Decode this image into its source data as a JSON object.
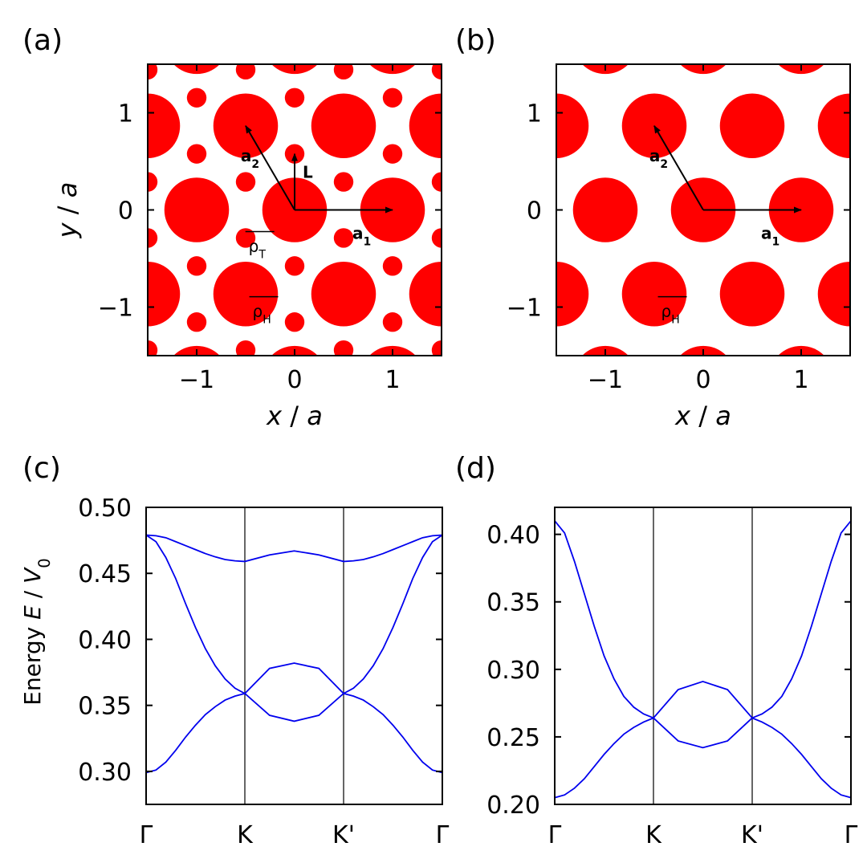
{
  "panel_labels": [
    "(a)",
    "(b)",
    "(c)",
    "(d)"
  ],
  "chart_data": [
    {
      "id": "a",
      "type": "scatter",
      "title": "",
      "xlabel": "x / a",
      "ylabel": "y / a",
      "xlim": [
        -1.5,
        1.5
      ],
      "ylim": [
        -1.5,
        1.5
      ],
      "xticks": [
        -1,
        0,
        1
      ],
      "yticks": [
        -1,
        0,
        1
      ],
      "marker_color": "#ff0000",
      "large_radius": 0.33,
      "small_radius": 0.1,
      "vectors": [
        {
          "label": "a",
          "sub": "1",
          "x": 1,
          "y": 0
        },
        {
          "label": "a",
          "sub": "2",
          "x": -0.5,
          "y": 0.866
        },
        {
          "label": "L",
          "sub": "",
          "x": 0,
          "y": 0.577
        }
      ],
      "annotations": [
        {
          "symbol": "ρ",
          "sub": "T",
          "x": -0.47,
          "y": -0.43
        },
        {
          "symbol": "ρ",
          "sub": "H",
          "x": -0.43,
          "y": -1.1
        }
      ]
    },
    {
      "id": "b",
      "type": "scatter",
      "title": "",
      "xlabel": "x / a",
      "ylabel": "",
      "xlim": [
        -1.5,
        1.5
      ],
      "ylim": [
        -1.5,
        1.5
      ],
      "xticks": [
        -1,
        0,
        1
      ],
      "yticks": [
        -1,
        0,
        1
      ],
      "marker_color": "#ff0000",
      "large_radius": 0.33,
      "small_radius": 0,
      "vectors": [
        {
          "label": "a",
          "sub": "1",
          "x": 1,
          "y": 0
        },
        {
          "label": "a",
          "sub": "2",
          "x": -0.5,
          "y": 0.866
        }
      ],
      "annotations": [
        {
          "symbol": "ρ",
          "sub": "H",
          "x": -0.43,
          "y": -1.1
        }
      ]
    },
    {
      "id": "c",
      "type": "line",
      "title": "",
      "xlabel": "",
      "ylabel": "Energy E / V0",
      "ylabel_parts": [
        "Energy ",
        "E",
        " / ",
        "V",
        "0"
      ],
      "categories": [
        "Γ",
        "K",
        "K'",
        "Γ"
      ],
      "ylim": [
        0.275,
        0.5
      ],
      "yticks": [
        "0.30",
        "0.35",
        "0.40",
        "0.45",
        "0.50"
      ],
      "line_color": "#0000ee",
      "series": [
        {
          "x": [
            0,
            0.1,
            0.2,
            0.3,
            0.4,
            0.5,
            0.6,
            0.7,
            0.8,
            0.9,
            1,
            1.25,
            1.5,
            1.75,
            2,
            2.1,
            2.2,
            2.3,
            2.4,
            2.5,
            2.6,
            2.7,
            2.8,
            2.9,
            3
          ],
          "values": [
            0.299,
            0.301,
            0.307,
            0.316,
            0.326,
            0.335,
            0.343,
            0.349,
            0.354,
            0.357,
            0.359,
            0.3425,
            0.338,
            0.3425,
            0.359,
            0.357,
            0.354,
            0.349,
            0.343,
            0.335,
            0.326,
            0.316,
            0.307,
            0.301,
            0.299
          ]
        },
        {
          "x": [
            0,
            0.1,
            0.2,
            0.3,
            0.4,
            0.5,
            0.6,
            0.7,
            0.8,
            0.9,
            1,
            1.25,
            1.5,
            1.75,
            2,
            2.1,
            2.2,
            2.3,
            2.4,
            2.5,
            2.6,
            2.7,
            2.8,
            2.9,
            3
          ],
          "values": [
            0.479,
            0.474,
            0.462,
            0.446,
            0.427,
            0.409,
            0.393,
            0.38,
            0.37,
            0.363,
            0.359,
            0.378,
            0.382,
            0.378,
            0.359,
            0.363,
            0.37,
            0.38,
            0.393,
            0.409,
            0.427,
            0.446,
            0.462,
            0.474,
            0.479
          ]
        },
        {
          "x": [
            0,
            0.1,
            0.2,
            0.3,
            0.4,
            0.5,
            0.6,
            0.7,
            0.8,
            0.9,
            1,
            1.25,
            1.5,
            1.75,
            2,
            2.1,
            2.2,
            2.3,
            2.4,
            2.5,
            2.6,
            2.7,
            2.8,
            2.9,
            3
          ],
          "values": [
            0.479,
            0.4785,
            0.477,
            0.474,
            0.471,
            0.468,
            0.465,
            0.4625,
            0.4605,
            0.4595,
            0.459,
            0.464,
            0.467,
            0.464,
            0.459,
            0.4595,
            0.4605,
            0.4625,
            0.465,
            0.468,
            0.471,
            0.474,
            0.477,
            0.4785,
            0.479
          ]
        }
      ]
    },
    {
      "id": "d",
      "type": "line",
      "title": "",
      "xlabel": "",
      "ylabel": "",
      "categories": [
        "Γ",
        "K",
        "K'",
        "Γ"
      ],
      "ylim": [
        0.2,
        0.42
      ],
      "yticks": [
        "0.20",
        "0.25",
        "0.30",
        "0.35",
        "0.40"
      ],
      "line_color": "#0000ee",
      "series": [
        {
          "x": [
            0,
            0.1,
            0.2,
            0.3,
            0.4,
            0.5,
            0.6,
            0.7,
            0.8,
            0.9,
            1,
            1.25,
            1.5,
            1.75,
            2,
            2.1,
            2.2,
            2.3,
            2.4,
            2.5,
            2.6,
            2.7,
            2.8,
            2.9,
            3
          ],
          "values": [
            0.205,
            0.207,
            0.212,
            0.219,
            0.228,
            0.237,
            0.245,
            0.252,
            0.257,
            0.261,
            0.264,
            0.247,
            0.242,
            0.247,
            0.264,
            0.261,
            0.257,
            0.252,
            0.245,
            0.237,
            0.228,
            0.219,
            0.212,
            0.207,
            0.205
          ]
        },
        {
          "x": [
            0,
            0.1,
            0.2,
            0.3,
            0.4,
            0.5,
            0.6,
            0.7,
            0.8,
            0.9,
            1,
            1.25,
            1.5,
            1.75,
            2,
            2.1,
            2.2,
            2.3,
            2.4,
            2.5,
            2.6,
            2.7,
            2.8,
            2.9,
            3
          ],
          "values": [
            0.41,
            0.401,
            0.38,
            0.356,
            0.332,
            0.31,
            0.293,
            0.28,
            0.272,
            0.267,
            0.264,
            0.285,
            0.291,
            0.285,
            0.264,
            0.267,
            0.272,
            0.28,
            0.293,
            0.31,
            0.332,
            0.356,
            0.38,
            0.401,
            0.41
          ]
        }
      ]
    }
  ]
}
